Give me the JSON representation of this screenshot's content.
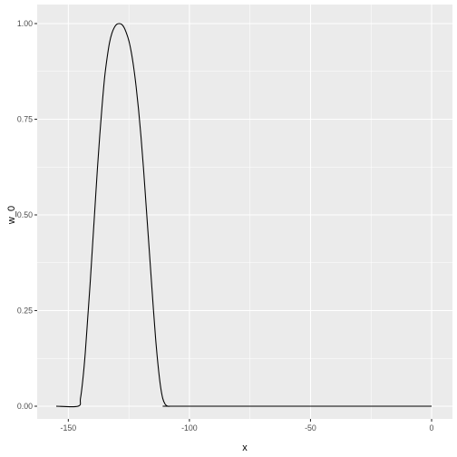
{
  "chart_data": {
    "type": "line",
    "title": "",
    "xlabel": "x",
    "ylabel": "w_0",
    "xlim": [
      -155,
      0
    ],
    "ylim": [
      0,
      1
    ],
    "x_ticks": [
      -150,
      -100,
      -50,
      0
    ],
    "x_tick_labels": [
      "-150",
      "-100",
      "-50",
      "0"
    ],
    "y_ticks": [
      0,
      0.25,
      0.5,
      0.75,
      1.0
    ],
    "y_tick_labels": [
      "0.00",
      "0.25",
      "0.50",
      "0.75",
      "1.00"
    ],
    "grid": true,
    "legend": "none",
    "line_color": "#000000",
    "panel_color": "#EBEBEB",
    "grid_color": "#FFFFFF",
    "series": [
      {
        "x": [
          -155,
          -146,
          -145,
          -144,
          -143,
          -142,
          -141,
          -140,
          -139,
          -138,
          -137,
          -136,
          -135,
          -134,
          -133,
          -132,
          -131,
          -130,
          -129,
          -128,
          -127,
          -126,
          -125,
          -124,
          -123,
          -122,
          -121,
          -120,
          -119,
          -118,
          -117,
          -116,
          -115,
          -114,
          -113,
          -112,
          -111,
          -110,
          -109,
          -108,
          -107,
          -106,
          -105,
          -104,
          -103,
          0
        ],
        "y": [
          0,
          0,
          0.02,
          0.07,
          0.14,
          0.23,
          0.32,
          0.42,
          0.52,
          0.62,
          0.71,
          0.79,
          0.86,
          0.91,
          0.95,
          0.975,
          0.99,
          0.998,
          1.0,
          0.998,
          0.99,
          0.975,
          0.955,
          0.925,
          0.885,
          0.835,
          0.775,
          0.705,
          0.625,
          0.535,
          0.445,
          0.355,
          0.265,
          0.18,
          0.11,
          0.055,
          0.02,
          0.005,
          0,
          0,
          0,
          0,
          0,
          0,
          0,
          0
        ]
      }
    ]
  }
}
